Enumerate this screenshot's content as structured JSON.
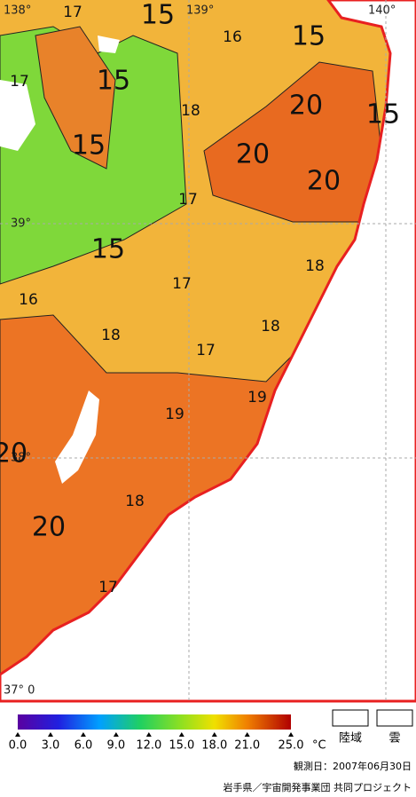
{
  "map": {
    "lon_labels": [
      "138°",
      "139°",
      "140°"
    ],
    "lat_labels": [
      "39°",
      "38°",
      "37° 0"
    ],
    "contour_labels": [
      15,
      17,
      16,
      15,
      17,
      15,
      18,
      20,
      15,
      15,
      20,
      20,
      17,
      15,
      18,
      16,
      17,
      18,
      18,
      17,
      19,
      19,
      20,
      20,
      18,
      17
    ]
  },
  "legend": {
    "colorbar": {
      "lim": [
        0,
        25
      ],
      "unit": "°C",
      "ticks": [
        {
          "value": 0,
          "label": "0.0"
        },
        {
          "value": 3,
          "label": "3.0"
        },
        {
          "value": 6,
          "label": "6.0"
        },
        {
          "value": 9,
          "label": "9.0"
        },
        {
          "value": 12,
          "label": "12.0"
        },
        {
          "value": 15,
          "label": "15.0"
        },
        {
          "value": 18,
          "label": "18.0"
        },
        {
          "value": 21,
          "label": "21.0"
        },
        {
          "value": 25,
          "label": "25.0"
        }
      ]
    },
    "land": "陸域",
    "cloud": "雲"
  },
  "footer": {
    "date": "観測日：2007年06月30日",
    "credit": "岩手県／宇宙開発事業団 共同プロジェクト"
  }
}
